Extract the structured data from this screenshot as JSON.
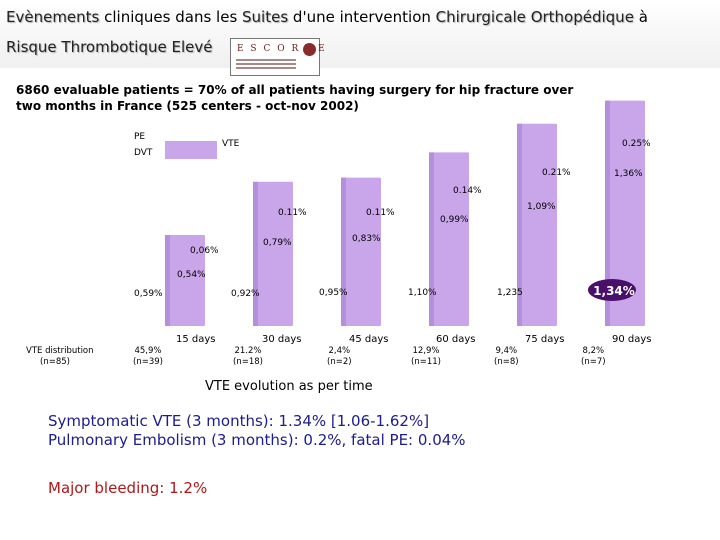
{
  "title": {
    "line1": {
      "evenements": "Evènements",
      "cliniques": " cliniques dans les ",
      "suites": "Suites",
      "dune": " d'une intervention ",
      "chirurgicale": "Chirurgicale",
      "sp": " ",
      "orthopedique": "Orthopédique",
      "a": " à"
    },
    "line2": {
      "risque": "Risque Thrombotique ",
      "eleve": "Elevé"
    },
    "logo_text": "E S C O R T E"
  },
  "study_text": {
    "line1": "6860 evaluable patients = 70% of all patients having surgery for hip fracture over",
    "line2": "two months in France (525 centers - oct-nov 2002)"
  },
  "legend": {
    "pe": "PE",
    "dvt": "DVT",
    "vte": "VTE"
  },
  "chart_data": {
    "type": "bar",
    "title": "VTE evolution as per time",
    "categories": [
      "15 days",
      "30 days",
      "45 days",
      "60 days",
      "75 days",
      "90 days"
    ],
    "series": [
      {
        "name": "VTE",
        "values": [
          0.59,
          0.92,
          0.95,
          1.1,
          1.235,
          1.34
        ],
        "labels": [
          "0,59%",
          "0,92%",
          "0,95%",
          "1,10%",
          "1,235",
          "1,34%"
        ]
      },
      {
        "name": "DVT",
        "values": [
          0.54,
          0.79,
          0.83,
          0.99,
          1.09,
          1.36
        ],
        "labels": [
          "0,54%",
          "0,79%",
          "0,83%",
          "0,99%",
          "1,09%",
          "1,36%"
        ]
      },
      {
        "name": "PE",
        "values": [
          0.06,
          0.11,
          0.11,
          0.14,
          0.21,
          0.25
        ],
        "labels": [
          "0,06%",
          "0.11%",
          "0.11%",
          "0.14%",
          "0.21%",
          "0.25%"
        ]
      }
    ],
    "distribution_header": {
      "line1": "VTE distribution",
      "line2": "(n=85)"
    },
    "distribution": [
      {
        "pct": "45,9%",
        "n": "(n=39)"
      },
      {
        "pct": "21.2%",
        "n": "(n=18)"
      },
      {
        "pct": "2,4%",
        "n": "(n=2)"
      },
      {
        "pct": "12,9%",
        "n": "(n=11)"
      },
      {
        "pct": "9,4%",
        "n": "(n=8)"
      },
      {
        "pct": "8,2%",
        "n": "(n=7)"
      }
    ]
  },
  "summary": {
    "line1": "Symptomatic VTE (3 months): 1.34% [1.06-1.62%]",
    "line2": "Pulmonary Embolism  (3 months): 0.2%, fatal PE: 0.04%"
  },
  "bleeding": "Major bleeding: 1.2%",
  "colors": {
    "bar": "#c9a6ea",
    "badge": "#4a0f6a",
    "summary": "#1c1c8c",
    "bleeding": "#b01818"
  }
}
